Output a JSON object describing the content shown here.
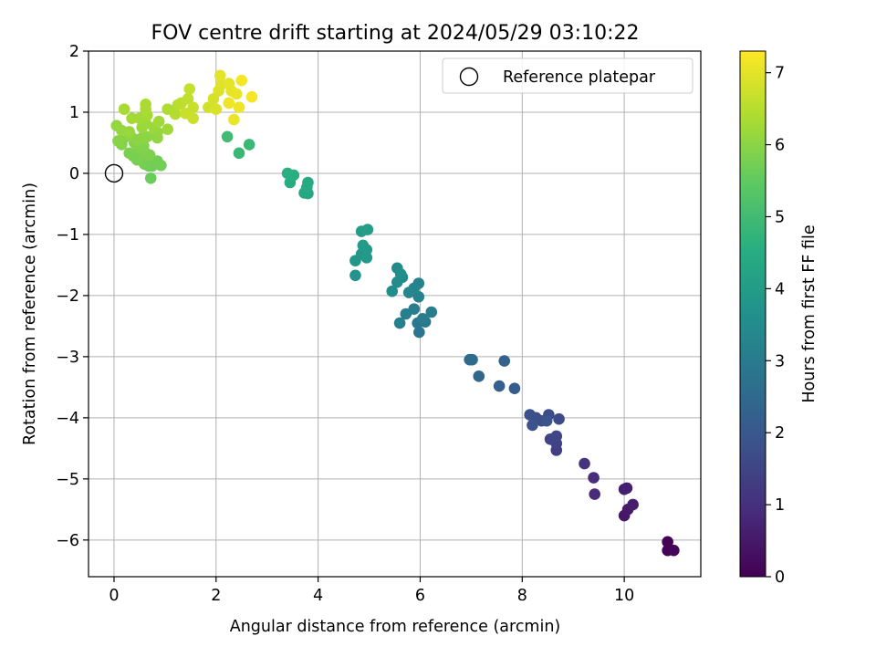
{
  "chart_data": {
    "type": "scatter",
    "title": "FOV centre drift starting at 2024/05/29 03:10:22",
    "xlabel": "Angular distance from reference (arcmin)",
    "ylabel": "Rotation from reference (arcmin)",
    "xlim": [
      -0.5,
      11.5
    ],
    "ylim": [
      -6.6,
      2.0
    ],
    "xticks": [
      0,
      2,
      4,
      6,
      8,
      10
    ],
    "yticks": [
      2,
      1,
      0,
      -1,
      -2,
      -3,
      -4,
      -5,
      -6
    ],
    "grid": true,
    "legend": {
      "position": "top-right",
      "entries": [
        "Reference platepar"
      ]
    },
    "reference_point": {
      "x": 0,
      "y": 0
    },
    "colorbar": {
      "label": "Hours from first FF file",
      "range": [
        0,
        7.3
      ],
      "ticks": [
        0,
        1,
        2,
        3,
        4,
        5,
        6,
        7
      ],
      "colormap": "viridis"
    },
    "points": [
      {
        "x": 10.85,
        "y": -6.03,
        "t": 0.05
      },
      {
        "x": 10.85,
        "y": -6.17,
        "t": 0.08
      },
      {
        "x": 10.97,
        "y": -6.17,
        "t": 0.12
      },
      {
        "x": 10.0,
        "y": -5.6,
        "t": 0.45
      },
      {
        "x": 10.07,
        "y": -5.5,
        "t": 0.5
      },
      {
        "x": 10.17,
        "y": -5.42,
        "t": 0.55
      },
      {
        "x": 10.0,
        "y": -5.17,
        "t": 0.6
      },
      {
        "x": 10.05,
        "y": -5.15,
        "t": 0.65
      },
      {
        "x": 9.42,
        "y": -5.25,
        "t": 0.9
      },
      {
        "x": 9.4,
        "y": -4.98,
        "t": 0.95
      },
      {
        "x": 9.22,
        "y": -4.75,
        "t": 1.05
      },
      {
        "x": 8.67,
        "y": -4.53,
        "t": 1.35
      },
      {
        "x": 8.67,
        "y": -4.42,
        "t": 1.4
      },
      {
        "x": 8.55,
        "y": -4.35,
        "t": 1.45
      },
      {
        "x": 8.67,
        "y": -4.3,
        "t": 1.5
      },
      {
        "x": 8.72,
        "y": -4.02,
        "t": 1.6
      },
      {
        "x": 8.52,
        "y": -3.95,
        "t": 1.65
      },
      {
        "x": 8.38,
        "y": -4.05,
        "t": 1.7
      },
      {
        "x": 8.27,
        "y": -4.0,
        "t": 1.75
      },
      {
        "x": 8.15,
        "y": -3.95,
        "t": 1.8
      },
      {
        "x": 8.2,
        "y": -4.12,
        "t": 1.85
      },
      {
        "x": 8.48,
        "y": -4.05,
        "t": 1.9
      },
      {
        "x": 7.85,
        "y": -3.52,
        "t": 2.1
      },
      {
        "x": 7.55,
        "y": -3.48,
        "t": 2.2
      },
      {
        "x": 7.65,
        "y": -3.07,
        "t": 2.3
      },
      {
        "x": 7.15,
        "y": -3.32,
        "t": 2.4
      },
      {
        "x": 6.97,
        "y": -3.05,
        "t": 2.5
      },
      {
        "x": 7.02,
        "y": -3.05,
        "t": 2.55
      },
      {
        "x": 5.98,
        "y": -2.6,
        "t": 2.85
      },
      {
        "x": 5.95,
        "y": -2.45,
        "t": 2.9
      },
      {
        "x": 6.1,
        "y": -2.43,
        "t": 2.95
      },
      {
        "x": 6.05,
        "y": -2.38,
        "t": 3.0
      },
      {
        "x": 6.22,
        "y": -2.27,
        "t": 3.05
      },
      {
        "x": 5.88,
        "y": -2.22,
        "t": 3.1
      },
      {
        "x": 5.72,
        "y": -2.3,
        "t": 3.12
      },
      {
        "x": 5.6,
        "y": -2.45,
        "t": 3.15
      },
      {
        "x": 5.97,
        "y": -2.02,
        "t": 3.2
      },
      {
        "x": 5.97,
        "y": -1.8,
        "t": 3.25
      },
      {
        "x": 5.88,
        "y": -1.88,
        "t": 3.3
      },
      {
        "x": 5.78,
        "y": -1.95,
        "t": 3.35
      },
      {
        "x": 5.65,
        "y": -1.7,
        "t": 3.4
      },
      {
        "x": 5.55,
        "y": -1.55,
        "t": 3.45
      },
      {
        "x": 5.55,
        "y": -1.78,
        "t": 3.5
      },
      {
        "x": 5.45,
        "y": -1.93,
        "t": 3.55
      },
      {
        "x": 5.62,
        "y": -1.65,
        "t": 3.58
      },
      {
        "x": 4.73,
        "y": -1.67,
        "t": 3.75
      },
      {
        "x": 4.73,
        "y": -1.43,
        "t": 3.8
      },
      {
        "x": 4.85,
        "y": -1.32,
        "t": 3.85
      },
      {
        "x": 4.95,
        "y": -1.38,
        "t": 3.9
      },
      {
        "x": 4.95,
        "y": -1.25,
        "t": 3.92
      },
      {
        "x": 4.88,
        "y": -1.18,
        "t": 3.95
      },
      {
        "x": 4.85,
        "y": -0.95,
        "t": 4.0
      },
      {
        "x": 4.97,
        "y": -0.92,
        "t": 4.05
      },
      {
        "x": 3.8,
        "y": -0.33,
        "t": 4.3
      },
      {
        "x": 3.73,
        "y": -0.32,
        "t": 4.35
      },
      {
        "x": 3.78,
        "y": -0.23,
        "t": 4.4
      },
      {
        "x": 3.8,
        "y": -0.15,
        "t": 4.45
      },
      {
        "x": 3.45,
        "y": -0.15,
        "t": 4.5
      },
      {
        "x": 3.52,
        "y": -0.03,
        "t": 4.55
      },
      {
        "x": 3.4,
        "y": 0.0,
        "t": 4.6
      },
      {
        "x": 2.45,
        "y": 0.33,
        "t": 4.85
      },
      {
        "x": 2.65,
        "y": 0.47,
        "t": 4.9
      },
      {
        "x": 2.22,
        "y": 0.6,
        "t": 5.0
      },
      {
        "x": 0.72,
        "y": -0.08,
        "t": 5.6
      },
      {
        "x": 0.68,
        "y": 0.12,
        "t": 5.65
      },
      {
        "x": 0.75,
        "y": 0.12,
        "t": 5.68
      },
      {
        "x": 0.92,
        "y": 0.13,
        "t": 5.7
      },
      {
        "x": 0.85,
        "y": 0.2,
        "t": 5.72
      },
      {
        "x": 0.6,
        "y": 0.15,
        "t": 5.73
      },
      {
        "x": 0.55,
        "y": 0.2,
        "t": 5.75
      },
      {
        "x": 0.45,
        "y": 0.22,
        "t": 5.77
      },
      {
        "x": 0.38,
        "y": 0.28,
        "t": 5.78
      },
      {
        "x": 0.3,
        "y": 0.33,
        "t": 5.8
      },
      {
        "x": 0.5,
        "y": 0.3,
        "t": 5.82
      },
      {
        "x": 0.6,
        "y": 0.35,
        "t": 5.84
      },
      {
        "x": 0.7,
        "y": 0.3,
        "t": 5.86
      },
      {
        "x": 0.48,
        "y": 0.42,
        "t": 5.88
      },
      {
        "x": 0.58,
        "y": 0.45,
        "t": 5.9
      },
      {
        "x": 0.4,
        "y": 0.5,
        "t": 5.92
      },
      {
        "x": 0.15,
        "y": 0.47,
        "t": 5.94
      },
      {
        "x": 0.08,
        "y": 0.53,
        "t": 5.96
      },
      {
        "x": 0.2,
        "y": 0.58,
        "t": 5.97
      },
      {
        "x": 0.32,
        "y": 0.62,
        "t": 5.98
      },
      {
        "x": 0.45,
        "y": 0.55,
        "t": 6.0
      },
      {
        "x": 0.55,
        "y": 0.58,
        "t": 6.02
      },
      {
        "x": 0.65,
        "y": 0.6,
        "t": 6.04
      },
      {
        "x": 0.85,
        "y": 0.58,
        "t": 6.06
      },
      {
        "x": 0.85,
        "y": 0.67,
        "t": 6.08
      },
      {
        "x": 0.05,
        "y": 0.78,
        "t": 6.1
      },
      {
        "x": 0.15,
        "y": 0.7,
        "t": 6.12
      },
      {
        "x": 0.3,
        "y": 0.68,
        "t": 6.14
      },
      {
        "x": 0.55,
        "y": 0.75,
        "t": 6.16
      },
      {
        "x": 0.62,
        "y": 0.82,
        "t": 6.18
      },
      {
        "x": 0.78,
        "y": 0.75,
        "t": 6.2
      },
      {
        "x": 1.05,
        "y": 0.72,
        "t": 6.22
      },
      {
        "x": 0.88,
        "y": 0.85,
        "t": 6.24
      },
      {
        "x": 0.5,
        "y": 0.9,
        "t": 6.26
      },
      {
        "x": 0.35,
        "y": 0.9,
        "t": 6.28
      },
      {
        "x": 0.65,
        "y": 0.95,
        "t": 6.3
      },
      {
        "x": 0.2,
        "y": 1.05,
        "t": 6.32
      },
      {
        "x": 0.62,
        "y": 1.05,
        "t": 6.34
      },
      {
        "x": 0.62,
        "y": 1.13,
        "t": 6.36
      },
      {
        "x": 1.05,
        "y": 1.05,
        "t": 6.4
      },
      {
        "x": 1.2,
        "y": 0.97,
        "t": 6.45
      },
      {
        "x": 1.25,
        "y": 1.12,
        "t": 6.5
      },
      {
        "x": 1.32,
        "y": 1.15,
        "t": 6.55
      },
      {
        "x": 1.45,
        "y": 1.22,
        "t": 6.6
      },
      {
        "x": 1.48,
        "y": 1.38,
        "t": 6.65
      },
      {
        "x": 1.55,
        "y": 1.08,
        "t": 6.7
      },
      {
        "x": 1.55,
        "y": 0.9,
        "t": 6.72
      },
      {
        "x": 1.4,
        "y": 0.98,
        "t": 6.68
      },
      {
        "x": 1.85,
        "y": 1.08,
        "t": 6.8
      },
      {
        "x": 1.95,
        "y": 1.22,
        "t": 6.85
      },
      {
        "x": 2.0,
        "y": 1.05,
        "t": 6.88
      },
      {
        "x": 2.05,
        "y": 1.35,
        "t": 6.9
      },
      {
        "x": 2.1,
        "y": 1.45,
        "t": 6.95
      },
      {
        "x": 2.08,
        "y": 1.6,
        "t": 7.0
      },
      {
        "x": 2.25,
        "y": 1.47,
        "t": 7.02
      },
      {
        "x": 2.3,
        "y": 1.35,
        "t": 7.05
      },
      {
        "x": 2.4,
        "y": 1.3,
        "t": 7.08
      },
      {
        "x": 2.35,
        "y": 0.88,
        "t": 7.1
      },
      {
        "x": 2.45,
        "y": 1.08,
        "t": 7.12
      },
      {
        "x": 2.25,
        "y": 1.15,
        "t": 7.14
      },
      {
        "x": 2.5,
        "y": 1.52,
        "t": 7.18
      },
      {
        "x": 2.7,
        "y": 1.25,
        "t": 7.22
      }
    ]
  }
}
